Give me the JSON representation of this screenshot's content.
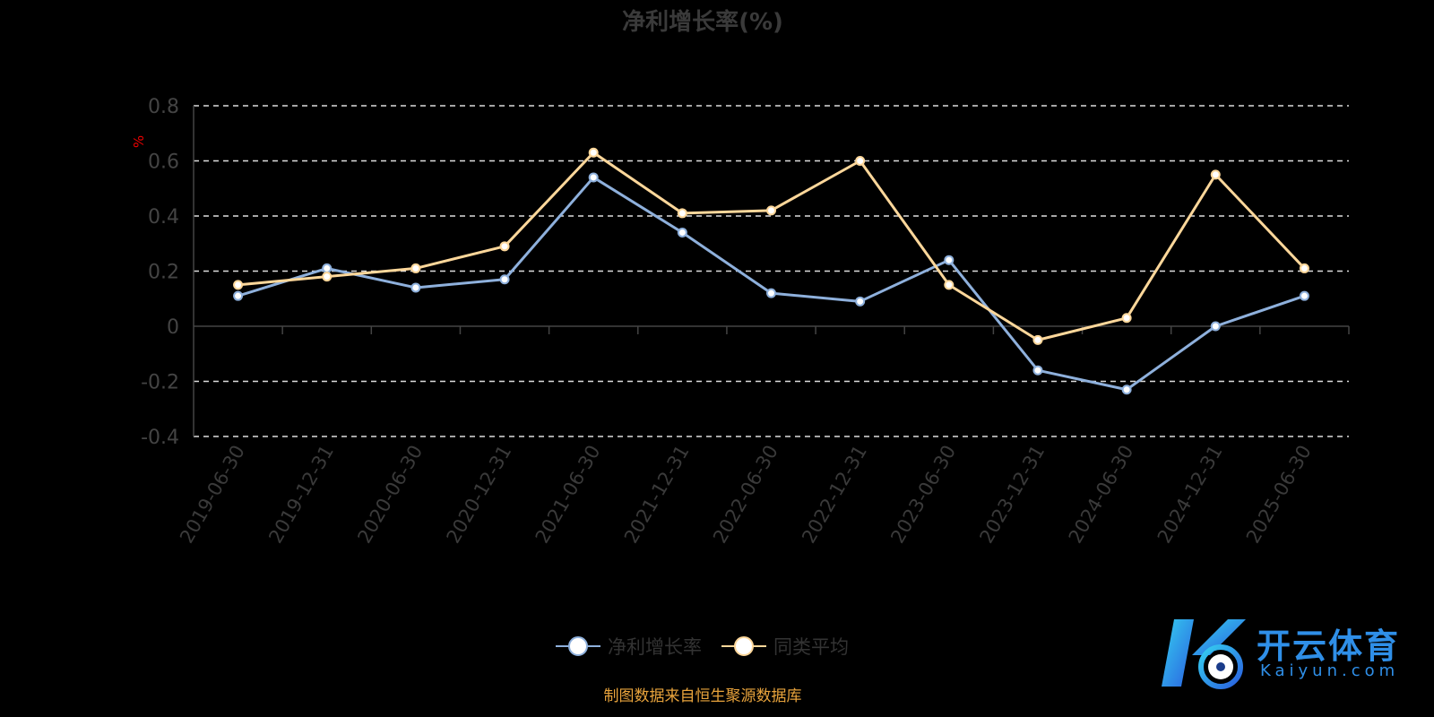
{
  "chart_data": {
    "type": "line",
    "title": "净利增长率(%)",
    "ylabel": "%",
    "xlabel": "",
    "ylim": [
      -0.4,
      0.8
    ],
    "yticks": [
      "-0.4",
      "-0.2",
      "0",
      "0.2",
      "0.4",
      "0.6",
      "0.8"
    ],
    "grid": true,
    "legend_position": "bottom",
    "categories": [
      "2019-06-30",
      "2019-12-31",
      "2020-06-30",
      "2020-12-31",
      "2021-06-30",
      "2021-12-31",
      "2022-06-30",
      "2022-12-31",
      "2023-06-30",
      "2023-12-31",
      "2024-06-30",
      "2024-12-31",
      "2025-06-30"
    ],
    "series": [
      {
        "name": "净利增长率",
        "color": "#8eb0dc",
        "values": [
          0.11,
          0.21,
          0.14,
          0.17,
          0.54,
          0.34,
          0.12,
          0.09,
          0.24,
          -0.16,
          -0.23,
          0.0,
          0.11
        ]
      },
      {
        "name": "同类平均",
        "color": "#fdd79a",
        "values": [
          0.15,
          0.18,
          0.21,
          0.29,
          0.63,
          0.41,
          0.42,
          0.6,
          0.15,
          -0.05,
          0.03,
          0.55,
          0.21
        ]
      }
    ]
  },
  "source": "制图数据来自恒生聚源数据库",
  "logo": {
    "cn": "开云体育",
    "en": "Kaiyun.com"
  }
}
